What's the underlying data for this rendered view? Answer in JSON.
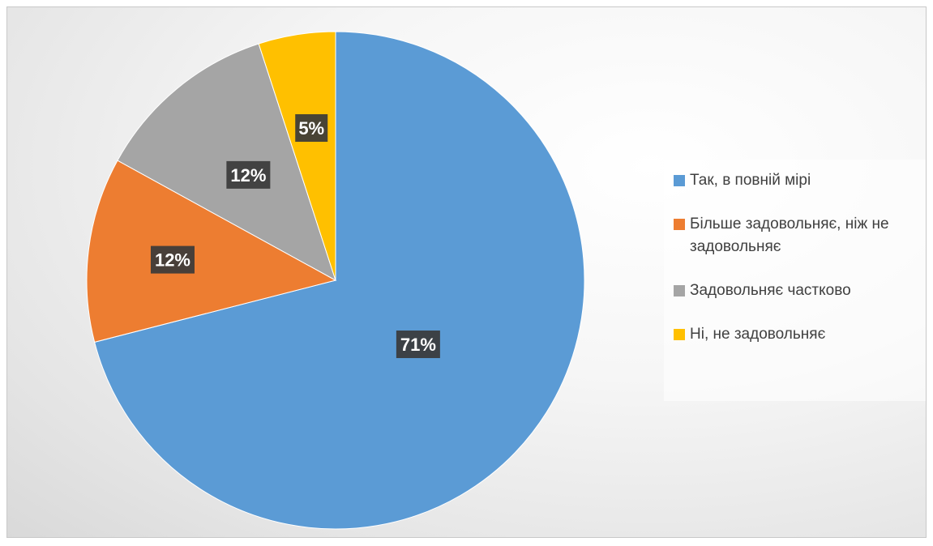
{
  "chart_data": {
    "type": "pie",
    "title": "",
    "legend_position": "right",
    "slices": [
      {
        "label": "Так, в повній мірі",
        "value": 71,
        "display": "71%",
        "color": "#5B9BD5"
      },
      {
        "label": "Більше задовольняє, ніж не задовольняє",
        "value": 12,
        "display": "12%",
        "color": "#ED7D31"
      },
      {
        "label": "Задовольняє частково",
        "value": 12,
        "display": "12%",
        "color": "#A5A5A5"
      },
      {
        "label": "Ні, не задовольняє",
        "value": 5,
        "display": "5%",
        "color": "#FFC000"
      }
    ]
  }
}
